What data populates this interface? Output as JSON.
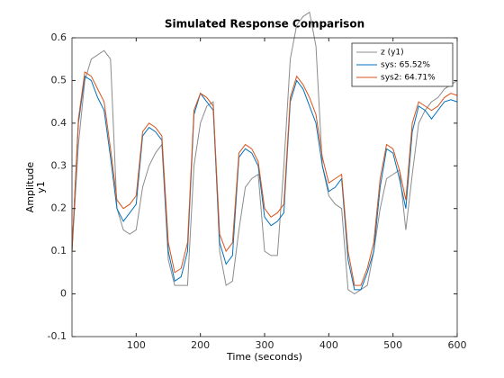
{
  "chart_data": {
    "type": "line",
    "title": "Simulated Response Comparison",
    "xlabel": "Time (seconds)",
    "ylabel": "Amplitude",
    "ylabel2": "y1",
    "x": [
      0,
      10,
      20,
      30,
      40,
      50,
      60,
      70,
      80,
      90,
      100,
      110,
      120,
      130,
      140,
      150,
      160,
      170,
      180,
      190,
      200,
      210,
      220,
      230,
      240,
      250,
      260,
      270,
      280,
      290,
      300,
      310,
      320,
      330,
      340,
      350,
      360,
      370,
      380,
      390,
      400,
      410,
      420,
      430,
      440,
      450,
      460,
      470,
      480,
      490,
      500,
      510,
      520,
      530,
      540,
      550,
      560,
      570,
      580,
      590,
      600
    ],
    "series": [
      {
        "name": "z (y1)",
        "color": "#8c8c8c",
        "values": [
          0.1,
          0.35,
          0.5,
          0.55,
          0.56,
          0.57,
          0.55,
          0.2,
          0.15,
          0.14,
          0.15,
          0.25,
          0.3,
          0.33,
          0.35,
          0.08,
          0.02,
          0.02,
          0.02,
          0.3,
          0.4,
          0.44,
          0.45,
          0.1,
          0.02,
          0.03,
          0.15,
          0.25,
          0.27,
          0.28,
          0.1,
          0.09,
          0.09,
          0.3,
          0.55,
          0.63,
          0.65,
          0.66,
          0.58,
          0.3,
          0.23,
          0.21,
          0.2,
          0.01,
          0.0,
          0.01,
          0.02,
          0.1,
          0.2,
          0.27,
          0.28,
          0.29,
          0.15,
          0.28,
          0.4,
          0.43,
          0.45,
          0.46,
          0.48,
          0.49,
          0.5
        ]
      },
      {
        "name": "sys: 65.52%",
        "color": "#0072bd",
        "values": [
          0.1,
          0.4,
          0.51,
          0.5,
          0.46,
          0.43,
          0.32,
          0.2,
          0.17,
          0.19,
          0.21,
          0.37,
          0.39,
          0.38,
          0.36,
          0.1,
          0.03,
          0.04,
          0.1,
          0.42,
          0.47,
          0.45,
          0.43,
          0.12,
          0.07,
          0.09,
          0.32,
          0.34,
          0.33,
          0.3,
          0.18,
          0.16,
          0.17,
          0.19,
          0.45,
          0.5,
          0.48,
          0.44,
          0.4,
          0.3,
          0.24,
          0.25,
          0.27,
          0.08,
          0.01,
          0.01,
          0.05,
          0.1,
          0.25,
          0.34,
          0.33,
          0.27,
          0.2,
          0.38,
          0.44,
          0.43,
          0.41,
          0.43,
          0.45,
          0.455,
          0.45
        ]
      },
      {
        "name": "sys2: 64.71%",
        "color": "#d95319",
        "values": [
          0.1,
          0.41,
          0.52,
          0.51,
          0.48,
          0.45,
          0.34,
          0.22,
          0.2,
          0.21,
          0.23,
          0.38,
          0.4,
          0.39,
          0.37,
          0.12,
          0.05,
          0.06,
          0.12,
          0.43,
          0.47,
          0.46,
          0.44,
          0.14,
          0.1,
          0.12,
          0.33,
          0.35,
          0.34,
          0.31,
          0.2,
          0.18,
          0.19,
          0.21,
          0.46,
          0.51,
          0.49,
          0.46,
          0.42,
          0.32,
          0.26,
          0.27,
          0.28,
          0.1,
          0.02,
          0.02,
          0.06,
          0.12,
          0.27,
          0.35,
          0.34,
          0.29,
          0.22,
          0.4,
          0.45,
          0.44,
          0.43,
          0.44,
          0.46,
          0.47,
          0.465
        ]
      }
    ],
    "xlim": [
      0,
      600
    ],
    "xticks": [
      100,
      200,
      300,
      400,
      500,
      600
    ],
    "ylim": [
      -0.1,
      0.6
    ],
    "yticks": [
      -0.1,
      0,
      0.1,
      0.2,
      0.3,
      0.4,
      0.5,
      0.6
    ],
    "legend": "upper right"
  }
}
